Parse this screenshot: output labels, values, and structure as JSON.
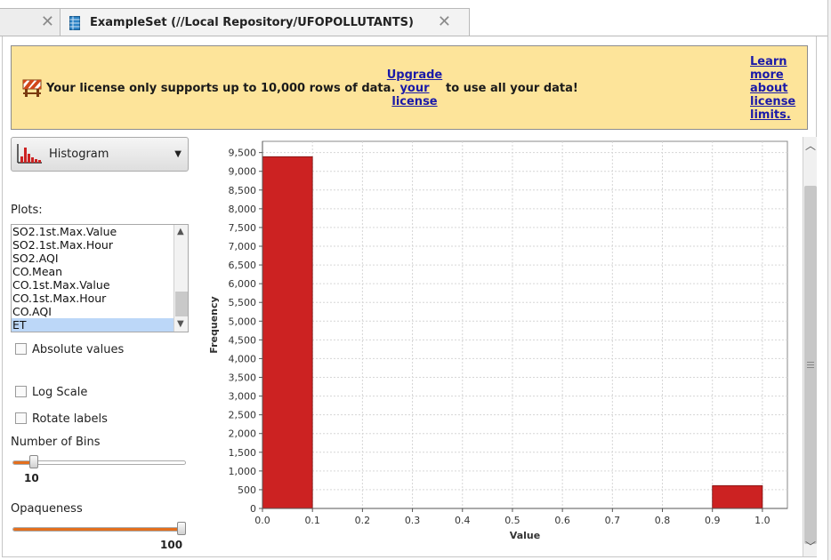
{
  "tabs": [
    {
      "label": "",
      "active": false
    },
    {
      "label": "ExampleSet (//Local Repository/UFOPOLLUTANTS)",
      "active": true
    }
  ],
  "close_glyph": "✕",
  "banner": {
    "message": "Your license only supports up to 10,000 rows of data.",
    "upgrade_link": [
      "Upgrade",
      "your",
      "license"
    ],
    "rest": "to use all your data!",
    "learn_link": [
      "Learn",
      "more",
      "about",
      "license",
      "limits."
    ],
    "icon": "roadblock-icon",
    "background": "#fde49a"
  },
  "plot_type": {
    "value": "Histogram",
    "icon": "histogram-icon"
  },
  "plots": {
    "label": "Plots:",
    "items": [
      "SO2.1st.Max.Value",
      "SO2.1st.Max.Hour",
      "SO2.AQI",
      "CO.Mean",
      "CO.1st.Max.Value",
      "CO.1st.Max.Hour",
      "CO.AQI",
      "ET"
    ],
    "selected": "ET"
  },
  "options": {
    "absolute_values": {
      "label": "Absolute values",
      "checked": false
    },
    "log_scale": {
      "label": "Log Scale",
      "checked": false
    },
    "rotate_labels": {
      "label": "Rotate labels",
      "checked": false
    }
  },
  "bins": {
    "label": "Number of Bins",
    "value": "10",
    "fraction": 0.1
  },
  "opaqueness": {
    "label": "Opaqueness",
    "value": "100",
    "fraction": 1.0
  },
  "colors": {
    "bar": "#cc2222",
    "slider_fill": "#e36f1e",
    "selected_row": "#bcd7f8"
  },
  "chart_data": {
    "type": "bar",
    "title": "",
    "xlabel": "Value",
    "ylabel": "Frequency",
    "xlim": [
      0.0,
      1.05
    ],
    "ylim": [
      0,
      9800
    ],
    "grid": true,
    "bins": [
      {
        "start": 0.0,
        "end": 0.1,
        "value": 9390
      },
      {
        "start": 0.9,
        "end": 1.0,
        "value": 610
      }
    ],
    "x_ticks": [
      "0.0",
      "0.1",
      "0.2",
      "0.3",
      "0.4",
      "0.5",
      "0.6",
      "0.7",
      "0.8",
      "0.9",
      "1.0"
    ],
    "y_ticks": [
      "0",
      "500",
      "1,000",
      "1,500",
      "2,000",
      "2,500",
      "3,000",
      "3,500",
      "4,000",
      "4,500",
      "5,000",
      "5,500",
      "6,000",
      "6,500",
      "7,000",
      "7,500",
      "8,000",
      "8,500",
      "9,000",
      "9,500"
    ]
  }
}
